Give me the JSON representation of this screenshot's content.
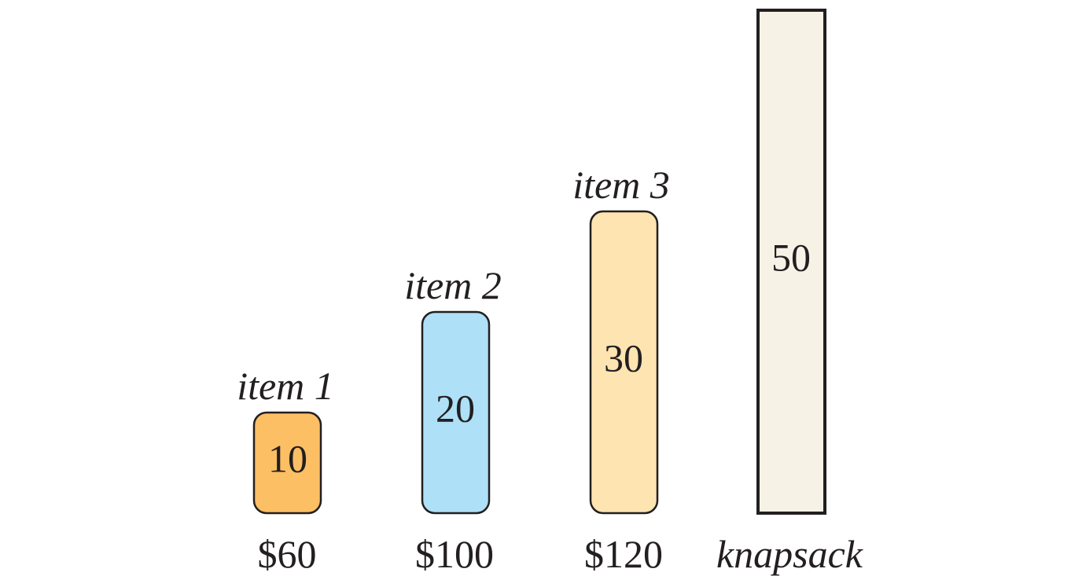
{
  "items": [
    {
      "label": "item 1",
      "weight": 10,
      "weight_text": "10",
      "value_text": "$60",
      "color": "#fdbf63"
    },
    {
      "label": "item 2",
      "weight": 20,
      "weight_text": "20",
      "value_text": "$100",
      "color": "#aee0f7"
    },
    {
      "label": "item 3",
      "weight": 30,
      "weight_text": "30",
      "value_text": "$120",
      "color": "#fde4b0"
    }
  ],
  "knapsack": {
    "label": "knapsack",
    "capacity": 50,
    "capacity_text": "50",
    "color": "#f6f3e6"
  },
  "colors": {
    "stroke": "#231f20",
    "text": "#231f20"
  }
}
